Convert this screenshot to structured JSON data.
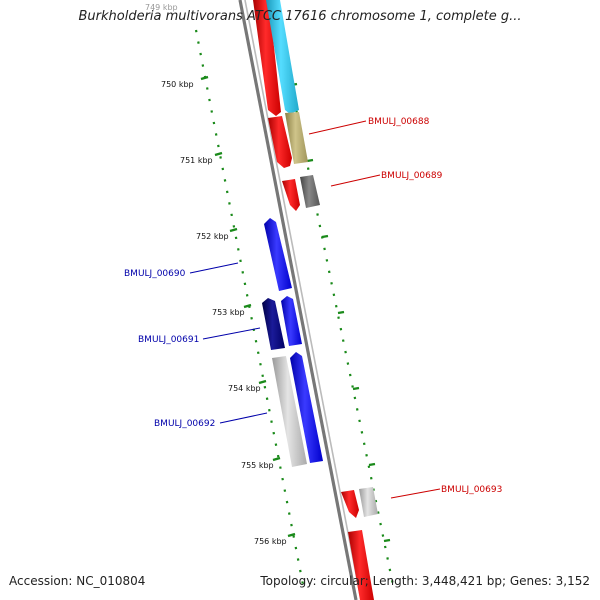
{
  "title": "Burkholderia multivorans ATCC 17616 chromosome 1, complete g...",
  "footer": {
    "accession_label": "Accession:",
    "accession": "NC_010804",
    "stats": "Topology: circular; Length: 3,448,421 bp; Genes: 3,152"
  },
  "ruler_labels": [
    "749 kbp",
    "750 kbp",
    "751 kbp",
    "752 kbp",
    "753 kbp",
    "754 kbp",
    "755 kbp",
    "756 kbp"
  ],
  "gene_labels": [
    {
      "text": "BMULJ_00688",
      "color": "#cc0000"
    },
    {
      "text": "BMULJ_00689",
      "color": "#cc0000"
    },
    {
      "text": "BMULJ_00690",
      "color": "#0000aa"
    },
    {
      "text": "BMULJ_00691",
      "color": "#0000aa"
    },
    {
      "text": "BMULJ_00692",
      "color": "#0000aa"
    },
    {
      "text": "BMULJ_00693",
      "color": "#cc0000"
    }
  ],
  "colors": {
    "ruler_tick": "#1a8a1a",
    "backbone": "#888888",
    "gene_red": "#ff0000",
    "gene_cyan": "#33ccee",
    "gene_khaki": "#b5a96a",
    "gene_darkgray": "#666666",
    "gene_blue": "#0000ee",
    "gene_navy": "#000077",
    "gene_lightgray": "#c8c8c8"
  }
}
